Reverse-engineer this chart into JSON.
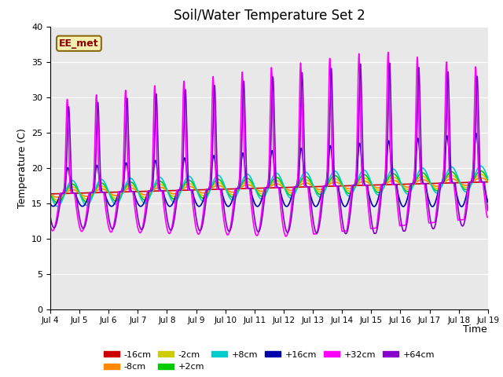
{
  "title": "Soil/Water Temperature Set 2",
  "xlabel": "Time",
  "ylabel": "Temperature (C)",
  "ylim": [
    0,
    40
  ],
  "xlim": [
    0,
    15
  ],
  "annotation": "EE_met",
  "x_tick_labels": [
    "Jul 4",
    "Jul 5",
    "Jul 6",
    "Jul 7",
    "Jul 8",
    "Jul 9",
    "Jul 10",
    "Jul 11",
    "Jul 12",
    "Jul 13",
    "Jul 14",
    "Jul 15",
    "Jul 16",
    "Jul 17",
    "Jul 18",
    "Jul 19"
  ],
  "series_order": [
    "-16cm",
    "-8cm",
    "-2cm",
    "+2cm",
    "+8cm",
    "+16cm",
    "+32cm",
    "+64cm"
  ],
  "colors": {
    "-16cm": "#cc0000",
    "-8cm": "#ff8800",
    "-2cm": "#cccc00",
    "+2cm": "#00cc00",
    "+8cm": "#00cccc",
    "+16cm": "#0000aa",
    "+32cm": "#ff00ff",
    "+64cm": "#8800cc"
  },
  "lw": 1.2,
  "bg_color": "#e8e8e8",
  "title_fontsize": 12,
  "grid_color": "#ffffff"
}
